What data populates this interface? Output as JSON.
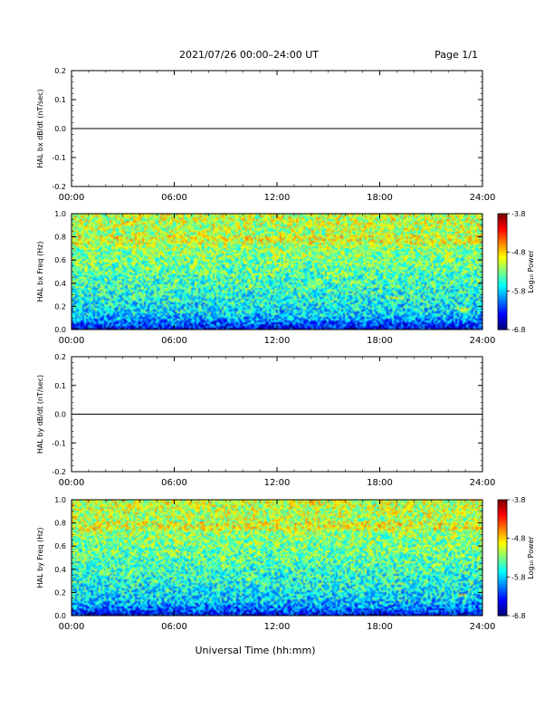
{
  "header": {
    "date_range": "2021/07/26  00:00–24:00 UT",
    "page": "Page 1/1"
  },
  "colors": {
    "line": "#000000",
    "text": "#000000"
  },
  "chart_data": [
    {
      "id": "bx_dbdt",
      "type": "line",
      "ylabel": "HAL bx dB/dt (nT/sec)",
      "xlim": [
        0,
        24
      ],
      "xticks": [
        "00:00",
        "06:00",
        "12:00",
        "18:00",
        "24:00"
      ],
      "ylim": [
        -0.2,
        0.2
      ],
      "yticks": [
        "0.2",
        "0.1",
        "0.0",
        "-0.1",
        "-0.2"
      ],
      "series": [
        {
          "x": [
            0,
            24
          ],
          "y": [
            0.0,
            0.0
          ]
        }
      ]
    },
    {
      "id": "bx_spec",
      "type": "heatmap",
      "ylabel": "HAL bx Freq (Hz)",
      "xlim": [
        0,
        24
      ],
      "xticks": [
        "00:00",
        "06:00",
        "12:00",
        "18:00",
        "24:00"
      ],
      "ylim": [
        0,
        1.0
      ],
      "yticks": [
        "1.0",
        "0.8",
        "0.6",
        "0.4",
        "0.2",
        "0.0"
      ],
      "colorbar": {
        "label": "Log₁₀ Power",
        "ticks": [
          "-3.8",
          "-4.8",
          "-5.8",
          "-6.8"
        ],
        "range": [
          -6.8,
          -3.8
        ]
      },
      "features": [
        {
          "t": 19.0,
          "f": 0.27
        },
        {
          "t": 23.0,
          "f": 0.17
        }
      ]
    },
    {
      "id": "by_dbdt",
      "type": "line",
      "ylabel": "HAL by dB/dt (nT/sec)",
      "xlim": [
        0,
        24
      ],
      "xticks": [
        "00:00",
        "06:00",
        "12:00",
        "18:00",
        "24:00"
      ],
      "ylim": [
        -0.2,
        0.2
      ],
      "yticks": [
        "0.2",
        "0.1",
        "0.0",
        "-0.1",
        "-0.2"
      ],
      "series": [
        {
          "x": [
            0,
            24
          ],
          "y": [
            0.0,
            0.0
          ]
        }
      ]
    },
    {
      "id": "by_spec",
      "type": "heatmap",
      "ylabel": "HAL by Freq (Hz)",
      "xlim": [
        0,
        24
      ],
      "xticks": [
        "00:00",
        "06:00",
        "12:00",
        "18:00",
        "24:00"
      ],
      "ylim": [
        0,
        1.0
      ],
      "yticks": [
        "1.0",
        "0.8",
        "0.6",
        "0.4",
        "0.2",
        "0.0"
      ],
      "colorbar": {
        "label": "Log₁₀ Power",
        "ticks": [
          "-3.8",
          "-4.8",
          "-5.8",
          "-6.8"
        ],
        "range": [
          -6.8,
          -3.8
        ]
      },
      "features": [
        {
          "t": 19.0,
          "f": 0.27
        },
        {
          "t": 22.8,
          "f": 0.17
        }
      ]
    }
  ],
  "xlabel": "Universal Time (hh:mm)"
}
